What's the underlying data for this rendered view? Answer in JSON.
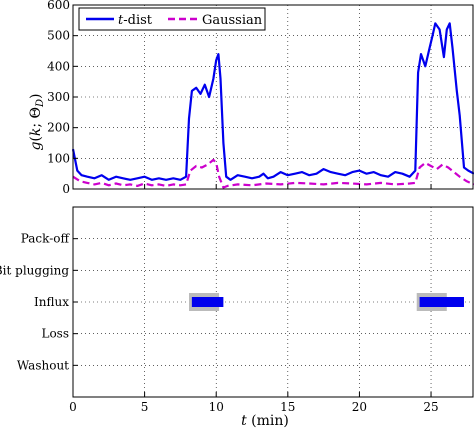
{
  "chart_data": [
    {
      "type": "line",
      "panel": "top",
      "ylabel": "g(k; Θ_D)",
      "ylim": [
        0,
        600
      ],
      "yticks": [
        0,
        100,
        200,
        300,
        400,
        500,
        600
      ],
      "xlim": [
        0,
        28
      ],
      "xticks": [
        0,
        5,
        10,
        15,
        20,
        25
      ],
      "grid": true,
      "legend_position": "top-left",
      "series": [
        {
          "name": "t-dist",
          "name_italic_part": "t",
          "name_rest": "-dist",
          "color": "#0000ee",
          "style": "solid",
          "x": [
            0,
            0.3,
            0.6,
            1.0,
            1.5,
            2.0,
            2.5,
            3.0,
            3.5,
            4.0,
            4.5,
            5.0,
            5.5,
            6.0,
            6.5,
            7.0,
            7.5,
            7.9,
            8.1,
            8.3,
            8.6,
            8.9,
            9.2,
            9.5,
            9.8,
            10.0,
            10.15,
            10.3,
            10.5,
            10.7,
            11.0,
            11.5,
            12.0,
            12.5,
            13.0,
            13.3,
            13.6,
            14.0,
            14.5,
            15.0,
            15.5,
            16.0,
            16.5,
            17.0,
            17.5,
            18.0,
            18.5,
            19.0,
            19.5,
            20.0,
            20.5,
            21.0,
            21.5,
            22.0,
            22.5,
            23.0,
            23.5,
            23.9,
            24.1,
            24.3,
            24.6,
            24.9,
            25.1,
            25.3,
            25.6,
            25.9,
            26.1,
            26.3,
            26.5,
            26.8,
            27.0,
            27.3,
            27.6,
            28.0
          ],
          "y": [
            130,
            60,
            45,
            40,
            35,
            45,
            30,
            40,
            35,
            30,
            35,
            40,
            30,
            35,
            30,
            35,
            30,
            40,
            230,
            320,
            330,
            310,
            340,
            300,
            360,
            420,
            440,
            360,
            150,
            40,
            30,
            45,
            40,
            35,
            40,
            50,
            35,
            40,
            55,
            45,
            50,
            55,
            45,
            50,
            65,
            55,
            50,
            45,
            55,
            60,
            50,
            55,
            45,
            40,
            55,
            50,
            40,
            60,
            380,
            440,
            400,
            460,
            500,
            540,
            520,
            430,
            520,
            540,
            460,
            320,
            240,
            70,
            60,
            50
          ]
        },
        {
          "name": "Gaussian",
          "color": "#cc00cc",
          "style": "dashed",
          "x": [
            0,
            0.5,
            1.0,
            1.5,
            2.0,
            2.5,
            3.0,
            3.5,
            4.0,
            4.5,
            5.0,
            5.5,
            6.0,
            6.5,
            7.0,
            7.5,
            7.9,
            8.2,
            8.6,
            9.0,
            9.4,
            9.8,
            10.0,
            10.2,
            10.5,
            10.8,
            11.5,
            12.5,
            13.5,
            14.5,
            15.5,
            16.5,
            17.5,
            18.5,
            19.5,
            20.5,
            21.5,
            22.5,
            23.5,
            23.9,
            24.2,
            24.6,
            25.0,
            25.4,
            25.8,
            26.2,
            26.6,
            27.0,
            27.5,
            28.0
          ],
          "y": [
            40,
            25,
            20,
            15,
            20,
            12,
            18,
            12,
            15,
            10,
            18,
            12,
            15,
            10,
            15,
            12,
            15,
            60,
            75,
            70,
            80,
            95,
            85,
            40,
            5,
            10,
            15,
            12,
            18,
            15,
            20,
            18,
            15,
            20,
            18,
            15,
            20,
            15,
            18,
            20,
            70,
            85,
            75,
            65,
            80,
            70,
            55,
            40,
            25,
            15
          ]
        }
      ]
    },
    {
      "type": "timeline",
      "panel": "bottom",
      "xlabel": "t (min)",
      "xlabel_italic_part": "t",
      "xlabel_rest": " (min)",
      "xlim": [
        0,
        28
      ],
      "xticks": [
        0,
        5,
        10,
        15,
        20,
        25
      ],
      "grid": true,
      "categories": [
        "Pack-off",
        "Bit plugging",
        "Influx",
        "Loss",
        "Washout"
      ],
      "ground_truth": [
        {
          "category": "Influx",
          "start": 8.1,
          "end": 10.2,
          "color": "#bbbbbb"
        },
        {
          "category": "Influx",
          "start": 24.0,
          "end": 26.1,
          "color": "#bbbbbb"
        }
      ],
      "detections": [
        {
          "category": "Influx",
          "start": 8.3,
          "end": 10.5,
          "color": "#0000ee"
        },
        {
          "category": "Influx",
          "start": 24.2,
          "end": 27.3,
          "color": "#0000ee"
        }
      ]
    }
  ]
}
